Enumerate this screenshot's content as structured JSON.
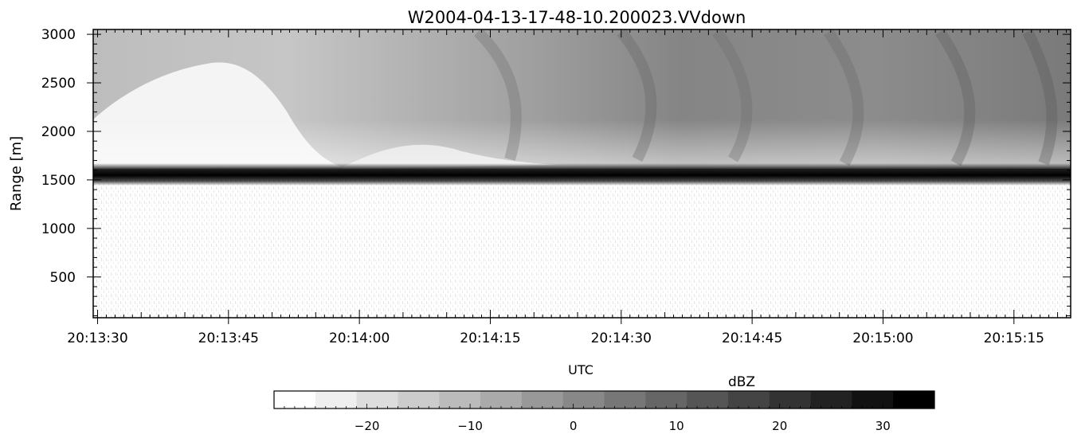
{
  "chart_data": {
    "type": "heatmap",
    "title": "W2004-04-13-17-48-10.200023.VVdown",
    "xlabel": "UTC",
    "ylabel": "Range [m]",
    "x_ticks": [
      "20:13:30",
      "20:13:45",
      "20:14:00",
      "20:14:15",
      "20:14:30",
      "20:14:45",
      "20:15:00",
      "20:15:15"
    ],
    "x_tick_seconds": [
      0,
      15,
      30,
      45,
      60,
      75,
      90,
      105
    ],
    "xlim_seconds": [
      -0.5,
      111.5
    ],
    "y_ticks": [
      500,
      1000,
      1500,
      2000,
      2500,
      3000
    ],
    "ylim": [
      3050,
      80
    ],
    "y_inverted": true,
    "colorbar": {
      "label": "dBZ",
      "ticks": [
        -20,
        -10,
        0,
        10,
        20,
        30
      ],
      "range": [
        -29,
        35
      ],
      "colors": [
        "#ffffff",
        "#efefef",
        "#dddddd",
        "#cccccc",
        "#bbbbbb",
        "#aaaaaa",
        "#999999",
        "#888888",
        "#777777",
        "#666666",
        "#555555",
        "#444444",
        "#333333",
        "#222222",
        "#111111",
        "#000000"
      ]
    },
    "bright_band_range_m": 1550
  }
}
